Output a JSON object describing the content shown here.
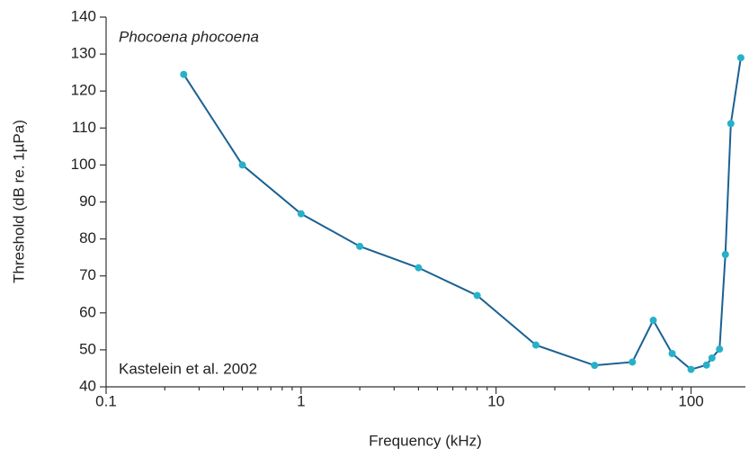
{
  "chart_data": {
    "type": "line",
    "x_label": "Frequency (kHz)",
    "y_label": "Threshold (dB re. 1µPa)",
    "annotations": [
      "Phocoena phocoena",
      "Kastelein et al. 2002"
    ],
    "x": [
      0.25,
      0.5,
      1,
      2,
      4,
      8,
      16,
      32,
      50,
      64,
      80,
      100,
      120,
      128,
      140,
      150,
      160,
      180
    ],
    "values": [
      124.5,
      100,
      86.8,
      78,
      72.2,
      64.7,
      51.3,
      45.8,
      46.7,
      58,
      49,
      44.7,
      45.9,
      47.8,
      50.2,
      75.8,
      111.2,
      129
    ],
    "color": "#1b6193",
    "marker_color": "#27b1c9",
    "x_scale": "log",
    "xlim": [
      0.1,
      190
    ],
    "xticks": [
      0.1,
      1,
      10,
      100
    ],
    "xminorticks": [
      0.2,
      0.3,
      0.4,
      0.5,
      0.6,
      0.7,
      0.8,
      0.9,
      2,
      3,
      4,
      5,
      6,
      7,
      8,
      9,
      20,
      30,
      40,
      50,
      60,
      70,
      80,
      90
    ],
    "ylim": [
      40,
      140
    ],
    "yticks": [
      40,
      50,
      60,
      70,
      80,
      90,
      100,
      110,
      120,
      130,
      140
    ]
  }
}
